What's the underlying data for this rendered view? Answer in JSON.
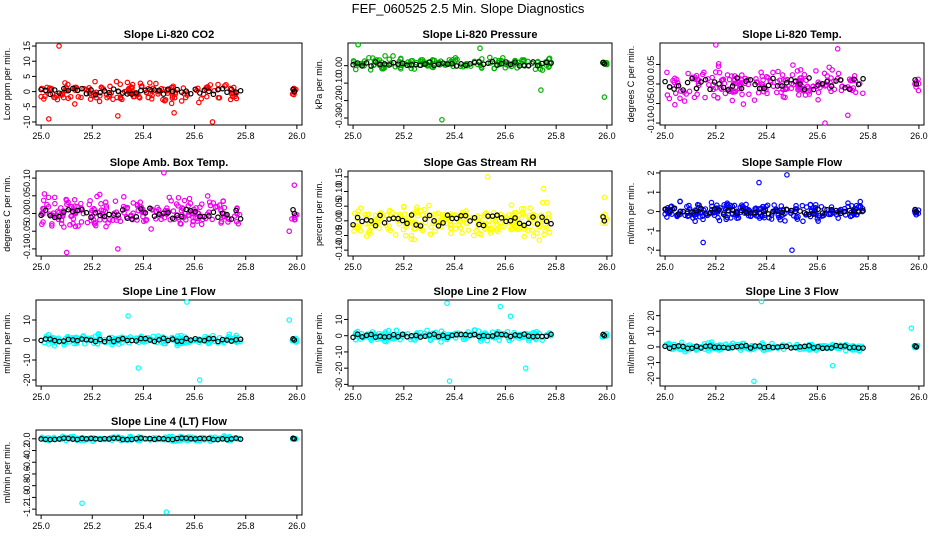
{
  "figure_title": "FEF_060525  2.5 Min. Slope Diagnostics",
  "colors": {
    "highlight": "#000000",
    "frame": "#000000"
  },
  "chart_data": [
    {
      "type": "scatter",
      "id": "co2",
      "title": "Slope Li-820 CO2",
      "ylabel": "Lcor ppm per min.",
      "color": "#ff0000",
      "xlim": [
        24.98,
        26.02
      ],
      "ylim": [
        -11,
        16
      ],
      "xticks": [
        25.0,
        25.2,
        25.4,
        25.6,
        25.8,
        26.0
      ],
      "yticks": [
        -10,
        -5,
        0,
        5,
        10,
        15
      ],
      "x_range": [
        25.0,
        25.78
      ],
      "spread": 2.5,
      "outliers": [
        [
          25.07,
          15
        ],
        [
          25.03,
          -9
        ],
        [
          25.3,
          -8
        ],
        [
          25.52,
          -7
        ],
        [
          25.67,
          -10
        ]
      ],
      "base": 0,
      "series_size": 160
    },
    {
      "type": "scatter",
      "id": "pressure",
      "title": "Slope Li-820 Pressure",
      "ylabel": "kPa per min.",
      "color": "#00b000",
      "xlim": [
        24.98,
        26.02
      ],
      "ylim": [
        -0.34,
        0.13
      ],
      "xticks": [
        25.0,
        25.2,
        25.4,
        25.6,
        25.8,
        26.0
      ],
      "yticks": [
        -0.3,
        -0.2,
        -0.1,
        0.0
      ],
      "x_range": [
        25.0,
        25.78
      ],
      "spread": 0.03,
      "outliers": [
        [
          25.02,
          0.12
        ],
        [
          25.35,
          -0.31
        ],
        [
          25.74,
          -0.14
        ],
        [
          25.99,
          -0.18
        ],
        [
          25.5,
          0.1
        ]
      ],
      "base": 0.01,
      "series_size": 150
    },
    {
      "type": "scatter",
      "id": "temp",
      "title": "Slope Li-820 Temp.",
      "ylabel": "degrees C per min.",
      "color": "#ee00ee",
      "xlim": [
        24.98,
        26.02
      ],
      "ylim": [
        -0.105,
        0.105
      ],
      "xticks": [
        25.0,
        25.2,
        25.4,
        25.6,
        25.8,
        26.0
      ],
      "yticks": [
        -0.1,
        -0.05,
        0.0,
        0.05
      ],
      "x_range": [
        25.0,
        25.78
      ],
      "spread": 0.035,
      "outliers": [
        [
          25.2,
          0.1
        ],
        [
          25.68,
          0.09
        ],
        [
          25.63,
          -0.1
        ],
        [
          25.72,
          -0.08
        ]
      ],
      "base": 0,
      "series_size": 200
    },
    {
      "type": "scatter",
      "id": "ambtemp",
      "title": "Slope Amb. Box Temp.",
      "ylabel": "degrees C per min.",
      "color": "#ee00ee",
      "xlim": [
        24.98,
        26.02
      ],
      "ylim": [
        -0.12,
        0.12
      ],
      "xticks": [
        25.0,
        25.2,
        25.4,
        25.6,
        25.8,
        26.0
      ],
      "yticks": [
        -0.1,
        -0.05,
        0.0,
        0.05,
        0.1
      ],
      "x_range": [
        25.0,
        25.78
      ],
      "spread": 0.035,
      "outliers": [
        [
          25.48,
          0.115
        ],
        [
          25.1,
          -0.11
        ],
        [
          25.3,
          -0.1
        ],
        [
          25.99,
          0.08
        ],
        [
          25.97,
          -0.05
        ]
      ],
      "base": 0,
      "series_size": 220
    },
    {
      "type": "scatter",
      "id": "rh",
      "title": "Slope Gas Stream RH",
      "ylabel": "percent per min.",
      "color": "#ffff00",
      "xlim": [
        24.98,
        26.02
      ],
      "ylim": [
        -0.12,
        0.17
      ],
      "xticks": [
        25.0,
        25.2,
        25.4,
        25.6,
        25.8,
        26.0
      ],
      "yticks": [
        -0.1,
        -0.05,
        0.0,
        0.05,
        0.1,
        0.15
      ],
      "x_range": [
        25.0,
        25.78
      ],
      "spread": 0.045,
      "outliers": [
        [
          25.53,
          0.15
        ],
        [
          25.75,
          0.11
        ],
        [
          25.99,
          0.08
        ]
      ],
      "base": 0,
      "series_size": 260
    },
    {
      "type": "scatter",
      "id": "sampleflow",
      "title": "Slope Sample Flow",
      "ylabel": "ml/min per min.",
      "color": "#0000ff",
      "xlim": [
        24.98,
        26.02
      ],
      "ylim": [
        -2.3,
        2.1
      ],
      "xticks": [
        25.0,
        25.2,
        25.4,
        25.6,
        25.8,
        26.0
      ],
      "yticks": [
        -2,
        -1,
        0,
        1,
        2
      ],
      "x_range": [
        25.0,
        25.78
      ],
      "spread": 0.35,
      "outliers": [
        [
          25.48,
          1.9
        ],
        [
          25.5,
          -2.0
        ],
        [
          25.15,
          -1.6
        ],
        [
          25.37,
          1.5
        ]
      ],
      "base": 0,
      "series_size": 240
    },
    {
      "type": "scatter",
      "id": "line1",
      "title": "Slope Line 1 Flow",
      "ylabel": "ml/min per min.",
      "color": "#00ffff",
      "xlim": [
        24.98,
        26.02
      ],
      "ylim": [
        -23,
        20
      ],
      "xticks": [
        25.0,
        25.2,
        25.4,
        25.6,
        25.8,
        26.0
      ],
      "yticks": [
        -20,
        -10,
        0,
        10
      ],
      "x_range": [
        25.0,
        25.78
      ],
      "spread": 2.0,
      "outliers": [
        [
          25.57,
          19
        ],
        [
          25.38,
          -14
        ],
        [
          25.62,
          -20
        ],
        [
          25.97,
          10
        ],
        [
          25.34,
          12
        ]
      ],
      "base": 0,
      "series_size": 200
    },
    {
      "type": "scatter",
      "id": "line2",
      "title": "Slope Line 2 Flow",
      "ylabel": "ml/min per min.",
      "color": "#00ffff",
      "xlim": [
        24.98,
        26.02
      ],
      "ylim": [
        -31,
        22
      ],
      "xticks": [
        25.0,
        25.2,
        25.4,
        25.6,
        25.8,
        26.0
      ],
      "yticks": [
        -30,
        -20,
        -10,
        0,
        10
      ],
      "x_range": [
        25.0,
        25.78
      ],
      "spread": 2.5,
      "outliers": [
        [
          25.37,
          20
        ],
        [
          25.38,
          -28
        ],
        [
          25.68,
          -20
        ],
        [
          25.58,
          18
        ],
        [
          25.62,
          12
        ]
      ],
      "base": 0,
      "series_size": 200
    },
    {
      "type": "scatter",
      "id": "line3",
      "title": "Slope Line 3 Flow",
      "ylabel": "ml/min per min.",
      "color": "#00ffff",
      "xlim": [
        24.98,
        26.02
      ],
      "ylim": [
        -25,
        30
      ],
      "xticks": [
        25.0,
        25.2,
        25.4,
        25.6,
        25.8,
        26.0
      ],
      "yticks": [
        -20,
        -10,
        0,
        10,
        20
      ],
      "x_range": [
        25.0,
        25.78
      ],
      "spread": 2.0,
      "outliers": [
        [
          25.38,
          29
        ],
        [
          25.35,
          -22
        ],
        [
          25.97,
          12
        ],
        [
          25.66,
          -12
        ]
      ],
      "base": 0,
      "series_size": 200
    },
    {
      "type": "scatter",
      "id": "line4",
      "title": "Slope Line 4 (LT) Flow",
      "ylabel": "ml/min per min.",
      "color": "#00ffff",
      "xlim": [
        24.98,
        26.02
      ],
      "ylim": [
        -1.3,
        0.15
      ],
      "xticks": [
        25.0,
        25.2,
        25.4,
        25.6,
        25.8,
        26.0
      ],
      "yticks": [
        -1.2,
        -1.0,
        -0.8,
        -0.6,
        -0.4,
        -0.2,
        0.0
      ],
      "x_range": [
        25.0,
        25.78
      ],
      "spread": 0.03,
      "outliers": [
        [
          25.16,
          -1.1
        ],
        [
          25.49,
          -1.25
        ]
      ],
      "base": 0,
      "series_size": 200
    }
  ]
}
